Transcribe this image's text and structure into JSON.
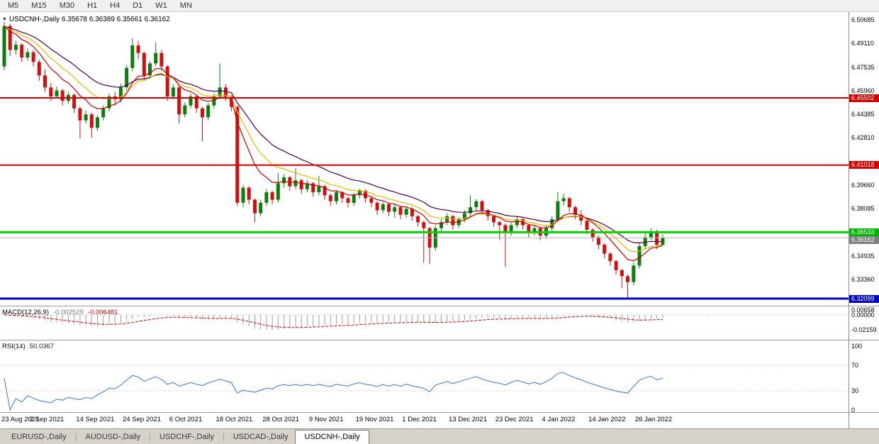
{
  "toolbar": {
    "periods": [
      "M5",
      "M15",
      "M30",
      "H1",
      "H4",
      "D1",
      "W1",
      "MN"
    ]
  },
  "chart_header": {
    "dropdown_icon": "▼",
    "text": "USDCNH-,Daily 6.35678 6.36389 6.35661 6.36162"
  },
  "indicator_labels": {
    "macd_name": "MACD(12,26,9)",
    "macd_main": "-0.002529",
    "macd_signal": "-0.006481",
    "rsi_name": "RSI(14)",
    "rsi_value": "50.0367"
  },
  "tabs": [
    {
      "label": "EURUSD-,Daily",
      "active": false
    },
    {
      "label": "AUDUSD-,Daily",
      "active": false
    },
    {
      "label": "USDCHF-,Daily",
      "active": false
    },
    {
      "label": "USDCAD-,Daily",
      "active": false
    },
    {
      "label": "USDCNH-,Daily",
      "active": true
    }
  ],
  "chart_data": {
    "type": "candlestick",
    "symbol": "USDCNH-",
    "period": "Daily",
    "ohlc_display": {
      "open": 6.35678,
      "high": 6.36389,
      "low": 6.35661,
      "close": 6.36162
    },
    "price_axis_labels": [
      {
        "text": "6.50685",
        "price": 6.50685
      },
      {
        "text": "6.49110",
        "price": 6.4911
      },
      {
        "text": "6.47535",
        "price": 6.47535
      },
      {
        "text": "6.45960",
        "price": 6.4596
      },
      {
        "text": "6.44385",
        "price": 6.44385
      },
      {
        "text": "6.42810",
        "price": 6.4281
      },
      {
        "text": "6.39660",
        "price": 6.3966
      },
      {
        "text": "6.38085",
        "price": 6.38085
      },
      {
        "text": "6.34935",
        "price": 6.34935
      },
      {
        "text": "6.33360",
        "price": 6.3336
      }
    ],
    "price_badges": [
      {
        "text": "6.45502",
        "price": 6.45502,
        "bg": "#d40000"
      },
      {
        "text": "6.41018",
        "price": 6.41018,
        "bg": "#d40000"
      },
      {
        "text": "6.36533",
        "price": 6.36533,
        "bg": "#00b800"
      },
      {
        "text": "6.36162",
        "price": 6.36162,
        "bg": "#808080"
      },
      {
        "text": "6.32099",
        "price": 6.32099,
        "bg": "#0000c8"
      }
    ],
    "hlines": [
      {
        "price": 6.45502,
        "color": "#d40000",
        "width": 2
      },
      {
        "price": 6.41018,
        "color": "#d40000",
        "width": 2
      },
      {
        "price": 6.36533,
        "color": "#00d400",
        "width": 3
      },
      {
        "price": 6.36162,
        "color": "#b4b4b4",
        "width": 1
      },
      {
        "price": 6.32099,
        "color": "#0000c8",
        "width": 3
      }
    ],
    "macd_axis_labels": [
      {
        "text": "0.00658",
        "value": 0.00658
      },
      {
        "text": "0.00000",
        "value": 0.0
      },
      {
        "text": "-0.02159",
        "value": -0.02159
      }
    ],
    "rsi_axis_labels": [
      {
        "text": "100",
        "value": 100
      },
      {
        "text": "70",
        "value": 70
      },
      {
        "text": "30",
        "value": 30
      },
      {
        "text": "0",
        "value": 0
      }
    ],
    "dates": [
      "23 Aug 2021",
      "2 Sep 2021",
      "14 Sep 2021",
      "24 Sep 2021",
      "6 Oct 2021",
      "18 Oct 2021",
      "28 Oct 2021",
      "9 Nov 2021",
      "19 Nov 2021",
      "1 Dec 2021",
      "13 Dec 2021",
      "23 Dec 2021",
      "4 Jan 2022",
      "14 Jan 2022",
      "26 Jan 2022"
    ],
    "candles": [
      [
        6.476,
        6.506,
        6.4735,
        6.503
      ],
      [
        6.503,
        6.5045,
        6.483,
        6.487
      ],
      [
        6.487,
        6.493,
        6.484,
        6.4905
      ],
      [
        6.4905,
        6.4915,
        6.479,
        6.482
      ],
      [
        6.482,
        6.488,
        6.48,
        6.4855
      ],
      [
        6.4855,
        6.487,
        6.476,
        6.479
      ],
      [
        6.479,
        6.4805,
        6.4665,
        6.47
      ],
      [
        6.47,
        6.474,
        6.459,
        6.462
      ],
      [
        6.462,
        6.465,
        6.453,
        6.456
      ],
      [
        6.456,
        6.4625,
        6.4545,
        6.46
      ],
      [
        6.46,
        6.461,
        6.45,
        6.453
      ],
      [
        6.453,
        6.459,
        6.451,
        6.457
      ],
      [
        6.457,
        6.458,
        6.445,
        6.448
      ],
      [
        6.448,
        6.4495,
        6.428,
        6.44
      ],
      [
        6.44,
        6.4465,
        6.438,
        6.444
      ],
      [
        6.444,
        6.445,
        6.4285,
        6.435
      ],
      [
        6.435,
        6.4435,
        6.433,
        6.442
      ],
      [
        6.442,
        6.45,
        6.44,
        6.448
      ],
      [
        6.448,
        6.458,
        6.446,
        6.456
      ],
      [
        6.456,
        6.459,
        6.45,
        6.454
      ],
      [
        6.454,
        6.4645,
        6.452,
        6.462
      ],
      [
        6.462,
        6.477,
        6.46,
        6.475
      ],
      [
        6.475,
        6.495,
        6.473,
        6.49
      ],
      [
        6.49,
        6.493,
        6.481,
        6.485
      ],
      [
        6.485,
        6.486,
        6.467,
        6.47
      ],
      [
        6.47,
        6.4795,
        6.468,
        6.478
      ],
      [
        6.478,
        6.492,
        6.476,
        6.485
      ],
      [
        6.485,
        6.487,
        6.473,
        6.476
      ],
      [
        6.476,
        6.477,
        6.453,
        6.456
      ],
      [
        6.456,
        6.464,
        6.454,
        6.462
      ],
      [
        6.462,
        6.463,
        6.438,
        6.444
      ],
      [
        6.444,
        6.452,
        6.442,
        6.45
      ],
      [
        6.45,
        6.458,
        6.448,
        6.456
      ],
      [
        6.456,
        6.457,
        6.445,
        6.448
      ],
      [
        6.448,
        6.449,
        6.426,
        6.442
      ],
      [
        6.442,
        6.4515,
        6.44,
        6.45
      ],
      [
        6.45,
        6.458,
        6.448,
        6.456
      ],
      [
        6.456,
        6.478,
        6.454,
        6.462
      ],
      [
        6.462,
        6.464,
        6.453,
        6.456
      ],
      [
        6.456,
        6.457,
        6.446,
        6.449
      ],
      [
        6.449,
        6.45,
        6.383,
        6.385
      ],
      [
        6.385,
        6.397,
        6.382,
        6.395
      ],
      [
        6.395,
        6.396,
        6.384,
        6.387
      ],
      [
        6.387,
        6.388,
        6.372,
        6.378
      ],
      [
        6.378,
        6.387,
        6.376,
        6.385
      ],
      [
        6.385,
        6.394,
        6.383,
        6.392
      ],
      [
        6.392,
        6.393,
        6.384,
        6.387
      ],
      [
        6.387,
        6.405,
        6.385,
        6.398
      ],
      [
        6.398,
        6.404,
        6.395,
        6.402
      ],
      [
        6.402,
        6.403,
        6.393,
        6.396
      ],
      [
        6.396,
        6.408,
        6.394,
        6.4
      ],
      [
        6.4,
        6.401,
        6.391,
        6.394
      ],
      [
        6.394,
        6.4,
        6.392,
        6.398
      ],
      [
        6.398,
        6.399,
        6.389,
        6.392
      ],
      [
        6.392,
        6.403,
        6.39,
        6.396
      ],
      [
        6.396,
        6.397,
        6.387,
        6.39
      ],
      [
        6.39,
        6.391,
        6.383,
        6.386
      ],
      [
        6.386,
        6.3935,
        6.384,
        6.392
      ],
      [
        6.392,
        6.393,
        6.385,
        6.388
      ],
      [
        6.388,
        6.389,
        6.382,
        6.385
      ],
      [
        6.385,
        6.3915,
        6.383,
        6.39
      ],
      [
        6.39,
        6.3945,
        6.388,
        6.393
      ],
      [
        6.393,
        6.394,
        6.385,
        6.388
      ],
      [
        6.388,
        6.389,
        6.382,
        6.385
      ],
      [
        6.385,
        6.386,
        6.377,
        6.38
      ],
      [
        6.38,
        6.3855,
        6.378,
        6.384
      ],
      [
        6.384,
        6.385,
        6.376,
        6.379
      ],
      [
        6.379,
        6.384,
        6.375,
        6.382
      ],
      [
        6.382,
        6.383,
        6.374,
        6.377
      ],
      [
        6.377,
        6.3825,
        6.375,
        6.381
      ],
      [
        6.381,
        6.382,
        6.373,
        6.376
      ],
      [
        6.376,
        6.377,
        6.369,
        6.372
      ],
      [
        6.372,
        6.373,
        6.345,
        6.368
      ],
      [
        6.368,
        6.369,
        6.344,
        6.355
      ],
      [
        6.355,
        6.37,
        6.353,
        6.368
      ],
      [
        6.368,
        6.374,
        6.366,
        6.372
      ],
      [
        6.372,
        6.378,
        6.37,
        6.376
      ],
      [
        6.376,
        6.377,
        6.367,
        6.37
      ],
      [
        6.37,
        6.3755,
        6.368,
        6.374
      ],
      [
        6.374,
        6.38,
        6.372,
        6.378
      ],
      [
        6.378,
        6.39,
        6.376,
        6.382
      ],
      [
        6.382,
        6.3875,
        6.38,
        6.386
      ],
      [
        6.386,
        6.387,
        6.377,
        6.38
      ],
      [
        6.38,
        6.381,
        6.373,
        6.376
      ],
      [
        6.376,
        6.377,
        6.369,
        6.372
      ],
      [
        6.372,
        6.373,
        6.36,
        6.37
      ],
      [
        6.37,
        6.371,
        6.342,
        6.365
      ],
      [
        6.365,
        6.3715,
        6.363,
        6.37
      ],
      [
        6.37,
        6.376,
        6.368,
        6.374
      ],
      [
        6.374,
        6.375,
        6.367,
        6.37
      ],
      [
        6.37,
        6.371,
        6.362,
        6.365
      ],
      [
        6.365,
        6.37,
        6.363,
        6.368
      ],
      [
        6.368,
        6.369,
        6.36,
        6.363
      ],
      [
        6.363,
        6.37,
        6.361,
        6.368
      ],
      [
        6.368,
        6.376,
        6.366,
        6.374
      ],
      [
        6.374,
        6.392,
        6.372,
        6.386
      ],
      [
        6.386,
        6.391,
        6.383,
        6.388
      ],
      [
        6.388,
        6.389,
        6.379,
        6.382
      ],
      [
        6.382,
        6.383,
        6.374,
        6.377
      ],
      [
        6.377,
        6.38,
        6.37,
        6.373
      ],
      [
        6.373,
        6.374,
        6.364,
        6.367
      ],
      [
        6.367,
        6.368,
        6.359,
        6.362
      ],
      [
        6.362,
        6.363,
        6.354,
        6.357
      ],
      [
        6.357,
        6.358,
        6.348,
        6.351
      ],
      [
        6.351,
        6.352,
        6.343,
        6.346
      ],
      [
        6.346,
        6.347,
        6.337,
        6.34
      ],
      [
        6.34,
        6.341,
        6.328,
        6.336
      ],
      [
        6.336,
        6.337,
        6.321,
        6.332
      ],
      [
        6.332,
        6.345,
        6.33,
        6.343
      ],
      [
        6.343,
        6.358,
        6.341,
        6.356
      ],
      [
        6.356,
        6.365,
        6.354,
        6.362
      ],
      [
        6.362,
        6.368,
        6.36,
        6.366
      ],
      [
        6.366,
        6.367,
        6.354,
        6.357
      ],
      [
        6.35678,
        6.36389,
        6.35661,
        6.36162
      ]
    ],
    "moving_averages": [
      {
        "period": 21,
        "color": "#4b004b"
      },
      {
        "period": 13,
        "color": "#e2b800"
      },
      {
        "period": 8,
        "color": "#c00000"
      }
    ],
    "macd": {
      "fast": 12,
      "slow": 26,
      "signal_period": 9,
      "histogram_color": "#a0a0a0",
      "signal_color": "#cc0000"
    },
    "rsi": {
      "period": 14,
      "color": "#3c78c8",
      "levels": [
        70,
        30
      ]
    },
    "candle_colors": {
      "up": "#0e7d0e",
      "down": "#d01010"
    }
  }
}
